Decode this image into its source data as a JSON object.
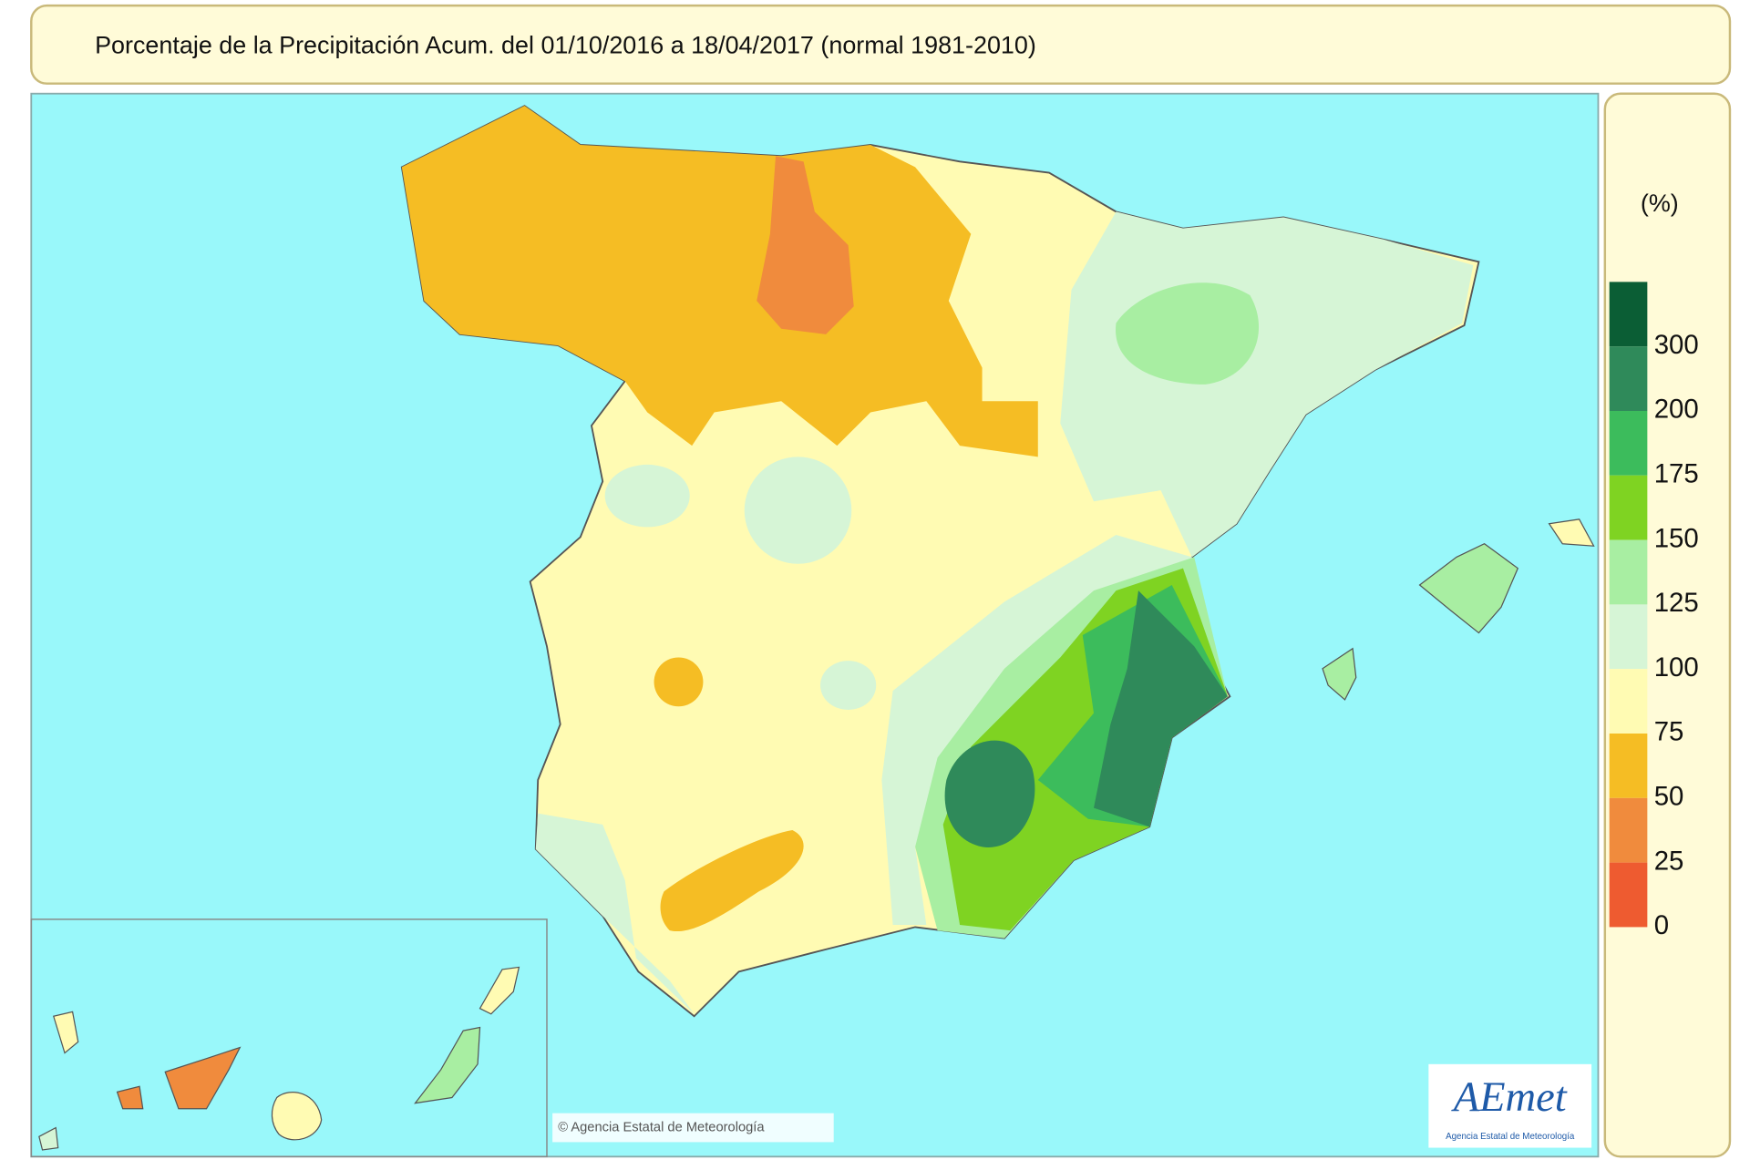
{
  "header": {
    "title": "Porcentaje de la Precipitación Acum. del 01/10/2016 a  18/04/2017  (normal 1981-2010)"
  },
  "legend": {
    "unit": "(%)",
    "items": [
      {
        "label": "300",
        "color": "#0b5e35"
      },
      {
        "label": "200",
        "color": "#2f8a5a"
      },
      {
        "label": "175",
        "color": "#3cbc5c"
      },
      {
        "label": "150",
        "color": "#7fd322"
      },
      {
        "label": "125",
        "color": "#a8eea2"
      },
      {
        "label": "100",
        "color": "#d6f5d6"
      },
      {
        "label": "75",
        "color": "#fffbb3"
      },
      {
        "label": "50",
        "color": "#f5bd24"
      },
      {
        "label": "25",
        "color": "#f08b3d"
      },
      {
        "label": "0",
        "color": "#ee5b30"
      }
    ]
  },
  "footer": {
    "copyright": "© Agencia Estatal de Meteorología",
    "logo": "AEmet",
    "logo_subtitle": "Agencia Estatal de Meteorología"
  }
}
